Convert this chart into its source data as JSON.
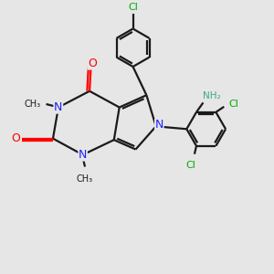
{
  "bg_color": "#e6e6e6",
  "bond_color": "#1a1a1a",
  "n_color": "#2020ff",
  "o_color": "#ff0000",
  "cl_color": "#00aa00",
  "nh_color": "#3aaa88",
  "line_width": 1.6,
  "fig_size": [
    3.0,
    3.0
  ],
  "dpi": 100,
  "xlim": [
    0,
    10
  ],
  "ylim": [
    0,
    10
  ]
}
